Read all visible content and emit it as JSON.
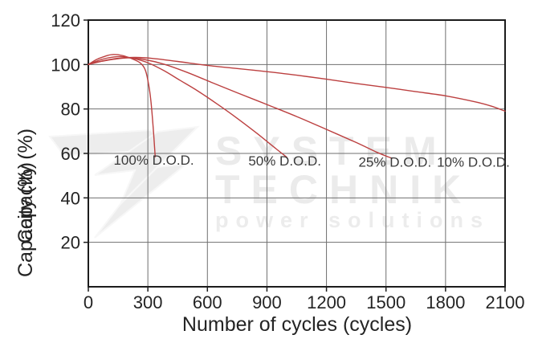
{
  "chart_data": {
    "type": "line",
    "title": "",
    "xlabel": "Number of cycles (cycles)",
    "ylabel": "Capacity (%)",
    "xlim": [
      0,
      2100
    ],
    "ylim": [
      0,
      120
    ],
    "x_ticks": [
      0,
      300,
      600,
      900,
      1200,
      1500,
      1800,
      2100
    ],
    "y_ticks": [
      20,
      40,
      60,
      80,
      100,
      120
    ],
    "grid": true,
    "legend_position": "inline-labels",
    "series": [
      {
        "name": "100% D.O.D.",
        "label_pos": {
          "x": 330,
          "y": 55
        },
        "points": [
          [
            0,
            100
          ],
          [
            40,
            102.2
          ],
          [
            80,
            103.6
          ],
          [
            120,
            104.5
          ],
          [
            170,
            104.1
          ],
          [
            220,
            102.6
          ],
          [
            260,
            100.8
          ],
          [
            285,
            98
          ],
          [
            300,
            93
          ],
          [
            315,
            84
          ],
          [
            328,
            70
          ],
          [
            337,
            58.5
          ]
        ]
      },
      {
        "name": "50% D.O.D.",
        "label_pos": {
          "x": 990,
          "y": 54.5
        },
        "points": [
          [
            0,
            100
          ],
          [
            50,
            101.8
          ],
          [
            100,
            103
          ],
          [
            160,
            103.6
          ],
          [
            220,
            102.9
          ],
          [
            300,
            100.8
          ],
          [
            380,
            97.3
          ],
          [
            460,
            93
          ],
          [
            550,
            88.2
          ],
          [
            650,
            82.2
          ],
          [
            750,
            75.8
          ],
          [
            850,
            69
          ],
          [
            950,
            61.8
          ],
          [
            1000,
            58.3
          ]
        ]
      },
      {
        "name": "25% D.O.D.",
        "label_pos": {
          "x": 1545,
          "y": 54
        },
        "points": [
          [
            0,
            100
          ],
          [
            60,
            101.3
          ],
          [
            130,
            102.4
          ],
          [
            200,
            103
          ],
          [
            280,
            102.3
          ],
          [
            380,
            100.2
          ],
          [
            500,
            96.4
          ],
          [
            620,
            92
          ],
          [
            750,
            87.3
          ],
          [
            900,
            82
          ],
          [
            1050,
            76.6
          ],
          [
            1200,
            70.8
          ],
          [
            1350,
            64.9
          ],
          [
            1460,
            60.3
          ],
          [
            1530,
            57.8
          ]
        ]
      },
      {
        "name": "10% D.O.D.",
        "label_pos": {
          "x": 1940,
          "y": 54
        },
        "points": [
          [
            0,
            100
          ],
          [
            70,
            101.6
          ],
          [
            150,
            102.8
          ],
          [
            240,
            103.2
          ],
          [
            330,
            102.7
          ],
          [
            450,
            101.4
          ],
          [
            600,
            99.6
          ],
          [
            750,
            98.2
          ],
          [
            900,
            96.8
          ],
          [
            1050,
            95.2
          ],
          [
            1200,
            93.4
          ],
          [
            1350,
            91.5
          ],
          [
            1500,
            89.7
          ],
          [
            1650,
            87.8
          ],
          [
            1800,
            85.9
          ],
          [
            1950,
            83.2
          ],
          [
            2030,
            81.3
          ],
          [
            2100,
            79
          ]
        ]
      }
    ]
  },
  "colors": {
    "curve": "#bc4040",
    "grid": "#6f6f6f",
    "frame": "#1c1c1c",
    "text": "#242424",
    "curve_label": "#3a3a3a",
    "watermark": "#ebebeb",
    "background": "#ffffff"
  },
  "watermark": {
    "line1": "SYSTEM",
    "line2": "TECHNIK",
    "line3": "power solutions"
  }
}
